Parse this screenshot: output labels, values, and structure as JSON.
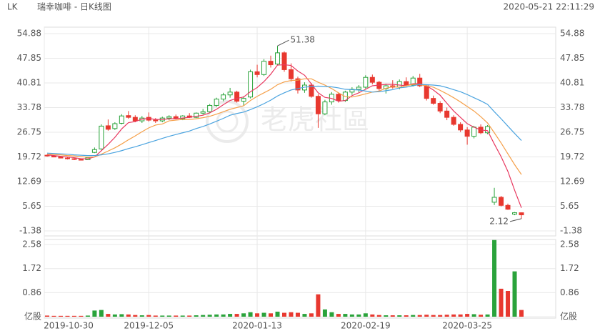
{
  "header": {
    "symbol": "LK",
    "title": "瑞幸咖啡 - 日K线图",
    "timestamp": "2020-05-21 22:11:29"
  },
  "chart_data": [
    {
      "type": "candlestick",
      "watermark": "老虎社區",
      "grid": true,
      "up_color": "#2aa33b",
      "down_color": "#e8382f",
      "categories": [
        "2019-10-30",
        null,
        null,
        null,
        null,
        null,
        null,
        null,
        null,
        null,
        null,
        null,
        null,
        null,
        null,
        "2019-12-05",
        null,
        null,
        null,
        null,
        null,
        null,
        null,
        null,
        null,
        null,
        null,
        null,
        null,
        null,
        null,
        "2020-01-13",
        null,
        null,
        null,
        null,
        null,
        null,
        null,
        null,
        null,
        null,
        null,
        null,
        null,
        null,
        null,
        "2020-02-19",
        null,
        null,
        null,
        null,
        null,
        null,
        null,
        null,
        null,
        null,
        null,
        null,
        null,
        null,
        "2020-03-25",
        null,
        null,
        null,
        null,
        null,
        null,
        null,
        null
      ],
      "open": [
        20.2,
        20.0,
        19.7,
        19.4,
        19.2,
        19.0,
        18.9,
        21.0,
        22.0,
        28.6,
        27.8,
        29.3,
        31.5,
        31.0,
        30.0,
        31.0,
        30.2,
        30.0,
        30.8,
        31.2,
        30.6,
        31.4,
        31.0,
        32.2,
        32.6,
        34.4,
        36.2,
        37.4,
        38.2,
        35.6,
        36.8,
        44.0,
        43.2,
        47.0,
        46.2,
        49.4,
        44.6,
        42.0,
        38.8,
        40.2,
        37.0,
        32.0,
        35.4,
        37.6,
        35.8,
        38.2,
        39.0,
        39.6,
        42.4,
        41.0,
        39.2,
        40.0,
        39.6,
        41.2,
        40.2,
        42.2,
        40.0,
        36.4,
        35.0,
        32.8,
        31.0,
        29.0,
        27.4,
        25.6,
        28.2,
        26.6,
        6.8,
        8.2,
        5.9,
        3.4,
        3.8
      ],
      "high": [
        20.4,
        20.1,
        19.9,
        19.6,
        19.4,
        19.3,
        19.6,
        22.4,
        29.0,
        30.4,
        29.6,
        31.9,
        32.8,
        31.6,
        31.4,
        32.4,
        30.8,
        31.2,
        31.6,
        31.8,
        31.6,
        32.2,
        32.4,
        33.4,
        34.8,
        36.6,
        38.0,
        39.4,
        38.6,
        37.0,
        44.6,
        46.0,
        47.6,
        48.6,
        51.38,
        49.8,
        46.4,
        42.6,
        41.0,
        40.8,
        37.6,
        36.0,
        38.2,
        38.0,
        38.6,
        39.6,
        40.2,
        43.0,
        43.2,
        41.4,
        40.6,
        41.6,
        41.8,
        42.4,
        42.8,
        43.4,
        40.4,
        37.2,
        35.6,
        33.8,
        31.6,
        29.6,
        28.2,
        28.6,
        29.0,
        28.8,
        10.9,
        8.6,
        6.4,
        4.0,
        3.9
      ],
      "low": [
        19.8,
        19.6,
        19.3,
        19.0,
        18.8,
        18.7,
        18.8,
        20.8,
        21.8,
        27.2,
        27.4,
        29.0,
        30.6,
        29.6,
        29.4,
        29.8,
        29.4,
        29.6,
        30.2,
        30.4,
        30.2,
        30.8,
        30.8,
        31.8,
        32.2,
        34.0,
        35.6,
        36.6,
        35.2,
        34.4,
        36.4,
        42.4,
        42.8,
        45.2,
        46.0,
        44.0,
        41.2,
        37.8,
        38.0,
        36.6,
        28.0,
        31.6,
        34.6,
        35.2,
        35.4,
        37.4,
        38.2,
        39.2,
        40.4,
        38.6,
        37.8,
        39.2,
        39.0,
        39.8,
        39.8,
        39.6,
        35.8,
        34.6,
        32.2,
        30.2,
        28.6,
        26.8,
        23.2,
        25.0,
        26.2,
        26.2,
        6.0,
        5.6,
        4.6,
        3.1,
        2.12
      ],
      "close": [
        20.0,
        19.7,
        19.4,
        19.2,
        19.0,
        18.9,
        19.5,
        21.8,
        28.5,
        27.6,
        29.2,
        31.4,
        31.0,
        30.0,
        30.8,
        30.2,
        30.0,
        30.8,
        31.2,
        30.6,
        31.4,
        31.0,
        32.2,
        32.6,
        34.4,
        36.2,
        37.4,
        38.2,
        35.6,
        36.4,
        44.0,
        43.2,
        47.0,
        46.0,
        49.4,
        44.6,
        42.0,
        38.8,
        40.2,
        37.0,
        32.0,
        35.4,
        37.6,
        35.8,
        38.2,
        39.0,
        39.6,
        42.4,
        41.0,
        39.2,
        40.0,
        39.6,
        41.2,
        40.2,
        42.2,
        40.0,
        36.4,
        35.0,
        32.8,
        31.0,
        29.0,
        27.4,
        25.6,
        28.2,
        26.6,
        28.4,
        8.2,
        5.9,
        4.8,
        3.8,
        3.2
      ],
      "lines": [
        {
          "color": "#e8385f",
          "values": [
            20.3,
            20.1,
            19.9,
            19.7,
            19.5,
            19.2,
            19.2,
            19.7,
            21.5,
            23.3,
            25.3,
            27.7,
            29.5,
            29.8,
            30.5,
            30.7,
            30.4,
            30.4,
            30.6,
            30.6,
            30.8,
            31.0,
            31.3,
            31.6,
            32.3,
            33.3,
            34.6,
            35.8,
            36.4,
            36.8,
            38.3,
            39.5,
            41.2,
            43.3,
            45.9,
            46.0,
            45.8,
            44.2,
            43.0,
            40.5,
            38.0,
            36.7,
            36.4,
            35.6,
            35.8,
            37.2,
            38.0,
            39.0,
            40.0,
            40.2,
            40.4,
            40.4,
            40.2,
            40.0,
            40.6,
            40.6,
            40.0,
            38.8,
            37.3,
            35.0,
            32.8,
            31.0,
            29.2,
            28.2,
            27.4,
            27.2,
            23.4,
            19.8,
            15.6,
            10.2,
            5.2
          ]
        },
        {
          "color": "#f5a04a",
          "values": [
            20.5,
            20.4,
            20.3,
            20.1,
            20.0,
            19.8,
            19.6,
            19.7,
            20.5,
            21.4,
            22.3,
            23.4,
            24.6,
            25.7,
            26.9,
            28.0,
            28.8,
            29.1,
            30.0,
            30.2,
            30.4,
            30.4,
            30.6,
            30.9,
            31.3,
            31.9,
            32.6,
            33.3,
            33.8,
            34.3,
            35.8,
            37.0,
            38.0,
            39.0,
            40.3,
            41.1,
            41.5,
            41.6,
            42.0,
            42.0,
            41.0,
            40.2,
            39.2,
            38.0,
            36.9,
            36.8,
            37.2,
            37.7,
            38.2,
            38.5,
            39.3,
            39.7,
            39.6,
            40.0,
            40.4,
            40.3,
            40.0,
            39.6,
            38.7,
            37.7,
            36.6,
            35.4,
            34.1,
            32.8,
            31.2,
            29.4,
            26.6,
            23.7,
            20.6,
            17.5,
            14.7
          ]
        },
        {
          "color": "#4aa3df",
          "values": [
            20.8,
            20.7,
            20.6,
            20.5,
            20.3,
            20.2,
            20.1,
            20.1,
            20.3,
            20.6,
            21.0,
            21.5,
            22.1,
            22.6,
            23.2,
            23.8,
            24.4,
            25.0,
            25.6,
            26.1,
            26.6,
            27.1,
            27.8,
            28.4,
            29.1,
            29.9,
            30.7,
            31.6,
            32.1,
            32.5,
            33.2,
            34.0,
            34.9,
            35.9,
            37.1,
            38.0,
            38.8,
            39.2,
            39.6,
            39.8,
            39.9,
            39.8,
            39.7,
            39.4,
            39.0,
            38.9,
            38.8,
            38.5,
            38.2,
            38.3,
            38.6,
            38.9,
            39.4,
            39.6,
            40.0,
            40.4,
            40.3,
            40.2,
            40.0,
            39.5,
            38.9,
            38.3,
            37.5,
            36.6,
            35.7,
            34.7,
            32.6,
            30.6,
            28.5,
            26.4,
            24.4
          ]
        }
      ],
      "max_label": 51.38,
      "min_label": 2.12,
      "ylim": [
        -1.38,
        54.88
      ],
      "yticks": [
        54.88,
        47.85,
        40.81,
        33.78,
        26.75,
        19.72,
        12.69,
        5.65,
        -1.38
      ]
    },
    {
      "type": "volume-bar",
      "values": [
        0.04,
        0.03,
        0.03,
        0.03,
        0.03,
        0.03,
        0.04,
        0.22,
        0.24,
        0.1,
        0.08,
        0.09,
        0.08,
        0.06,
        0.05,
        0.06,
        0.04,
        0.04,
        0.04,
        0.04,
        0.04,
        0.04,
        0.05,
        0.06,
        0.07,
        0.08,
        0.08,
        0.1,
        0.1,
        0.12,
        0.16,
        0.12,
        0.14,
        0.12,
        0.18,
        0.14,
        0.16,
        0.14,
        0.1,
        0.12,
        0.8,
        0.26,
        0.16,
        0.1,
        0.1,
        0.08,
        0.08,
        0.12,
        0.08,
        0.06,
        0.05,
        0.05,
        0.05,
        0.05,
        0.06,
        0.06,
        0.07,
        0.06,
        0.06,
        0.07,
        0.08,
        0.08,
        0.1,
        0.09,
        0.07,
        0.08,
        2.74,
        1.0,
        0.92,
        1.62,
        0.24
      ],
      "ylim": [
        0,
        2.76
      ],
      "yticks": [
        2.58,
        1.72,
        0.86,
        {
          "value": 0,
          "label": "亿股"
        }
      ]
    }
  ]
}
